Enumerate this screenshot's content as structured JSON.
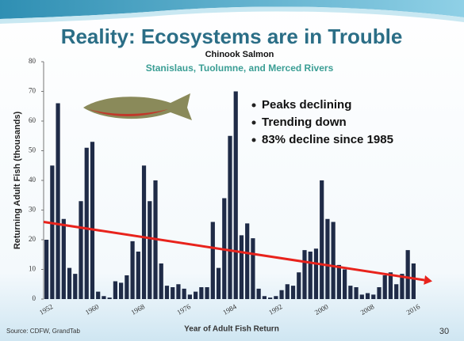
{
  "slide_title": "Reality:  Ecosystems are in Trouble",
  "bullets": [
    "Peaks declining",
    "Trending down",
    "83% decline since 1985"
  ],
  "source": "Source: CDFW, GrandTab",
  "page_number": "30",
  "chart_data": {
    "type": "bar",
    "title": "Chinook Salmon",
    "subtitle": "Stanislaus, Tuolumne, and Merced Rivers",
    "ylabel": "Returning Adult Fish (thousands)",
    "xlabel": "Year of Adult Fish Return",
    "categories": [
      "1952",
      null,
      null,
      null,
      null,
      null,
      null,
      null,
      "1960",
      null,
      null,
      null,
      null,
      null,
      null,
      null,
      "1968",
      null,
      null,
      null,
      null,
      null,
      null,
      null,
      "1976",
      null,
      null,
      null,
      null,
      null,
      null,
      null,
      "1984",
      null,
      null,
      null,
      null,
      null,
      null,
      null,
      "1992",
      null,
      null,
      null,
      null,
      null,
      null,
      null,
      "2000",
      null,
      null,
      null,
      null,
      null,
      null,
      null,
      "2008",
      null,
      null,
      null,
      null,
      null,
      null,
      null,
      "2016"
    ],
    "values": [
      20,
      45,
      66,
      27,
      10.5,
      8.5,
      33,
      51,
      53,
      2.5,
      1,
      0.5,
      6,
      5.5,
      8,
      19.5,
      16,
      45,
      33,
      40,
      12,
      4.5,
      4,
      5,
      3.5,
      1.5,
      2.5,
      4,
      4,
      26,
      10.5,
      34,
      55,
      70,
      21.5,
      25.5,
      20.5,
      3.5,
      1,
      0.5,
      1,
      3,
      5,
      4.5,
      9,
      16.5,
      16,
      17,
      40,
      27,
      26,
      11.5,
      10,
      4.5,
      4,
      1.5,
      2,
      1.5,
      4,
      8,
      9,
      5,
      8.5,
      16.5,
      12
    ],
    "color": "#1f2b47",
    "ylim": [
      0,
      80
    ],
    "yticks": [
      0,
      10,
      20,
      30,
      40,
      50,
      60,
      70,
      80
    ],
    "trend_line": {
      "values": [
        26,
        6
      ],
      "color": "#e8231c"
    }
  }
}
